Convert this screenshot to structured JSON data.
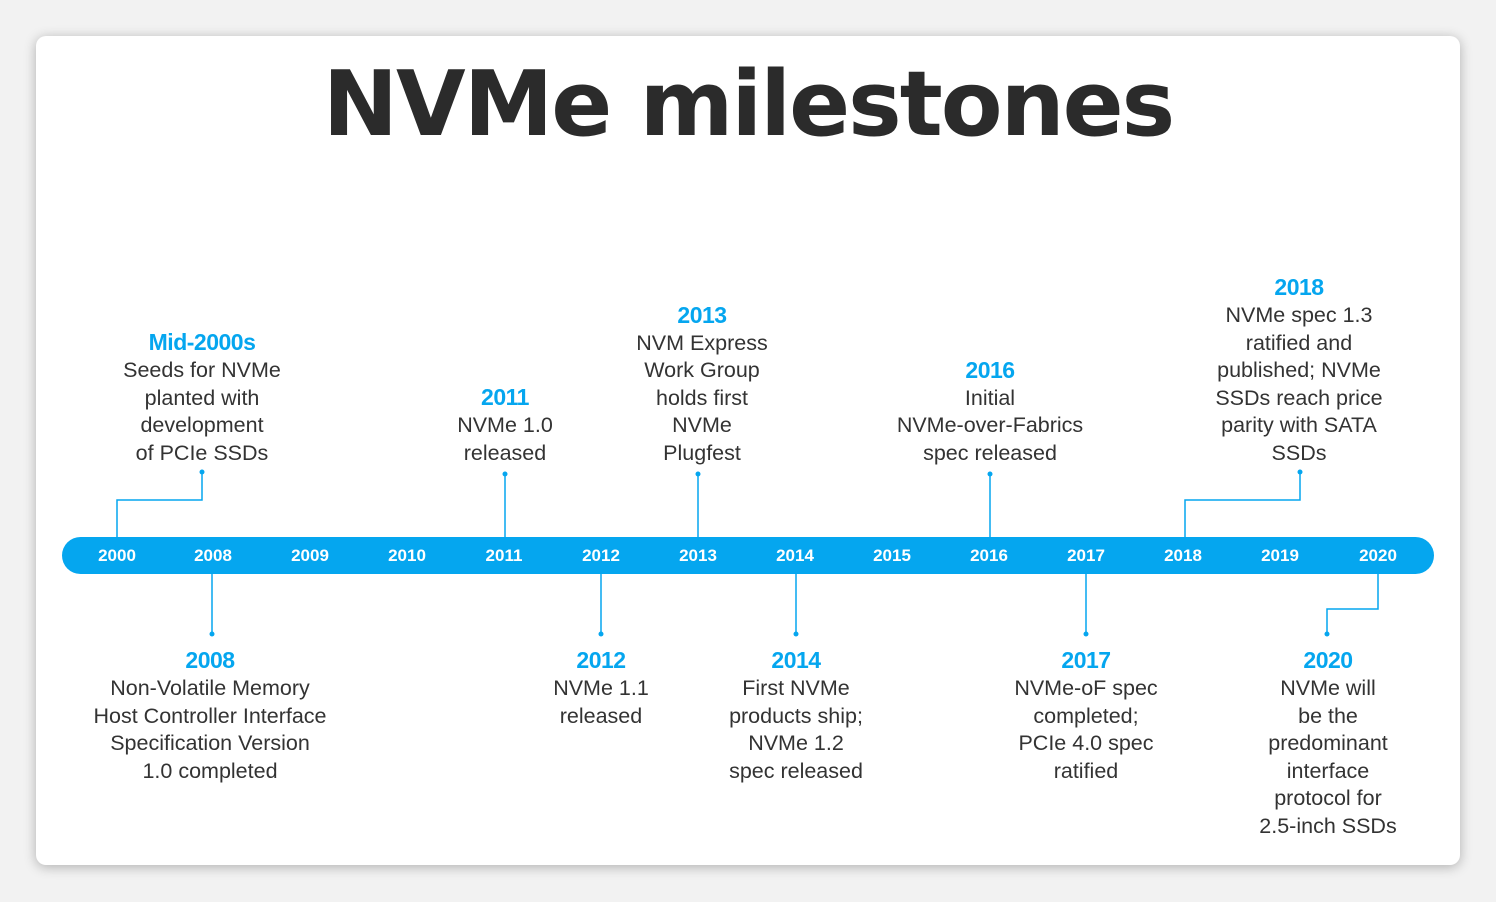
{
  "title": "NVMe milestones",
  "colors": {
    "accent": "#05a6ef",
    "text": "#333333",
    "title": "#2b2b2b"
  },
  "axis_years": [
    "2000",
    "2008",
    "2009",
    "2010",
    "2011",
    "2012",
    "2013",
    "2014",
    "2015",
    "2016",
    "2017",
    "2018",
    "2019",
    "2020"
  ],
  "events_top": [
    {
      "year": "Mid-2000s",
      "text": "Seeds for NVMe\nplanted with\ndevelopment\nof PCIe SSDs"
    },
    {
      "year": "2011",
      "text": "NVMe 1.0\nreleased"
    },
    {
      "year": "2013",
      "text": "NVM Express\nWork Group\nholds first\nNVMe\nPlugfest"
    },
    {
      "year": "2016",
      "text": "Initial\nNVMe-over-Fabrics\nspec released"
    },
    {
      "year": "2018",
      "text": "NVMe spec 1.3\nratified and\npublished; NVMe\nSSDs reach price\nparity with SATA\nSSDs"
    }
  ],
  "events_bottom": [
    {
      "year": "2008",
      "text": "Non-Volatile Memory\nHost Controller Interface\nSpecification Version\n1.0 completed"
    },
    {
      "year": "2012",
      "text": "NVMe 1.1\nreleased"
    },
    {
      "year": "2014",
      "text": "First NVMe\nproducts ship;\nNVMe 1.2\nspec released"
    },
    {
      "year": "2017",
      "text": "NVMe-oF spec\ncompleted;\nPCIe 4.0 spec\nratified"
    },
    {
      "year": "2020",
      "text": "NVMe will\nbe the\npredominant\ninterface\nprotocol for\n2.5-inch SSDs"
    }
  ]
}
